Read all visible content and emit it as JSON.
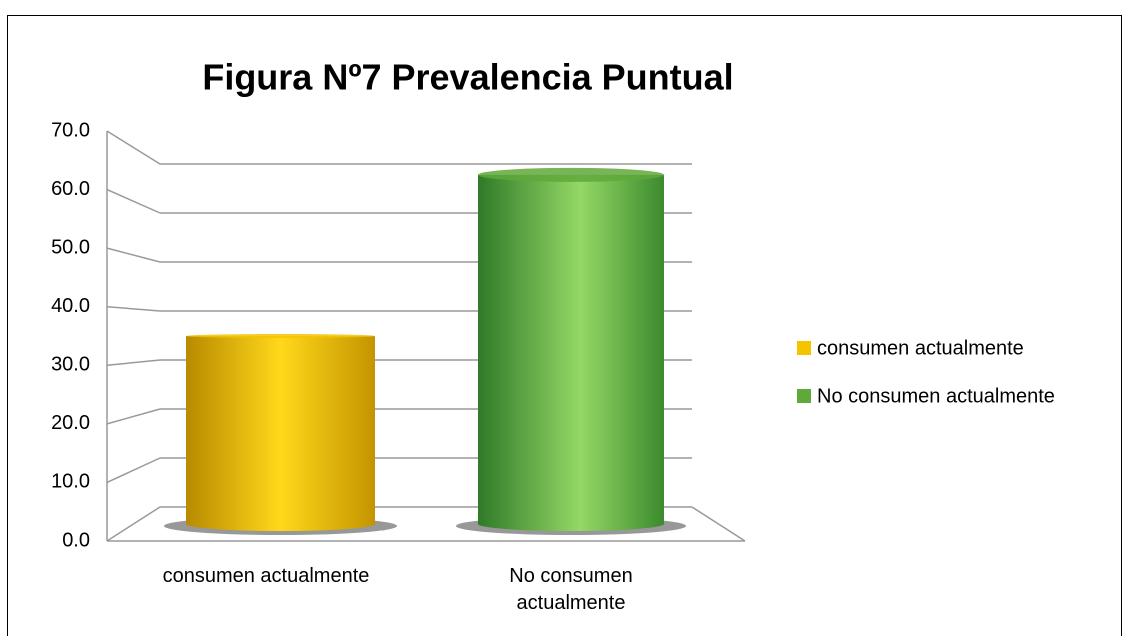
{
  "chart_data": {
    "type": "bar3d",
    "title": "Figura Nº7 Prevalencia Puntual",
    "categories": [
      "consumen actualmente",
      "No consumen actualmente"
    ],
    "series": [
      {
        "name": "consumen actualmente",
        "color": "#f5c400"
      },
      {
        "name": "No consumen actualmente",
        "color": "#5fa83a"
      }
    ],
    "values": [
      35.0,
      65.0
    ],
    "ylim": [
      0,
      70
    ],
    "yticks": [
      {
        "value": 0,
        "label": "0.0"
      },
      {
        "value": 10,
        "label": "10.0"
      },
      {
        "value": 20,
        "label": "20.0"
      },
      {
        "value": 30,
        "label": "30.0"
      },
      {
        "value": 40,
        "label": "40.0"
      },
      {
        "value": 50,
        "label": "50.0"
      },
      {
        "value": 60,
        "label": "60.0"
      },
      {
        "value": 70,
        "label": "70.0"
      }
    ],
    "grid": true,
    "legend": "right"
  }
}
